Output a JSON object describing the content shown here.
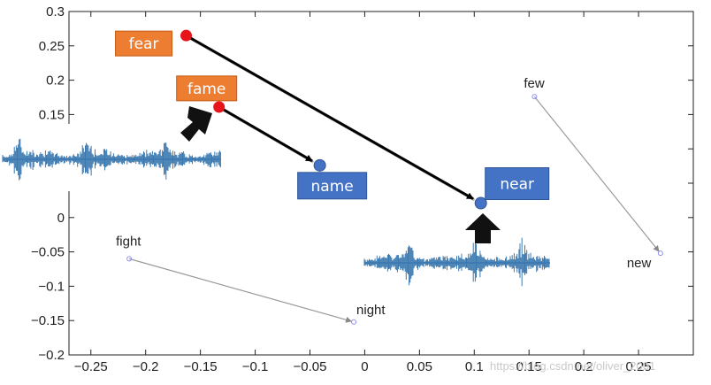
{
  "chart_data": {
    "type": "scatter",
    "title": "",
    "xlabel": "",
    "ylabel": "",
    "xlim": [
      -0.27,
      0.3
    ],
    "ylim": [
      -0.2,
      0.3
    ],
    "xticks": [
      -0.25,
      -0.2,
      -0.15,
      -0.1,
      -0.05,
      0,
      0.05,
      0.1,
      0.15,
      0.2,
      0.25
    ],
    "xtick_labels": [
      "−0.25",
      "−0.2",
      "−0.15",
      "−0.1",
      "−0.05",
      "0",
      "0.05",
      "0.1",
      "0.15",
      "0.2",
      "0.25"
    ],
    "yticks": [
      0.3,
      0.25,
      0.2,
      0.15,
      0.1,
      0.05,
      0,
      -0.05,
      -0.1,
      -0.15,
      -0.2
    ],
    "ytick_labels": [
      "0.3",
      "0.25",
      "0.2",
      "0.15",
      "0.1",
      "0.05",
      "0",
      "−0.05",
      "−0.1",
      "−0.15",
      "−0.2"
    ],
    "grid": false,
    "points": [
      {
        "label": "fear",
        "x": -0.163,
        "y": 0.265,
        "style": "highlight-source"
      },
      {
        "label": "fame",
        "x": -0.133,
        "y": 0.161,
        "style": "highlight-source"
      },
      {
        "label": "name",
        "x": -0.041,
        "y": 0.076,
        "style": "highlight-target"
      },
      {
        "label": "near",
        "x": 0.106,
        "y": 0.021,
        "style": "highlight-target"
      },
      {
        "label": "few",
        "x": 0.155,
        "y": 0.176,
        "style": "plain"
      },
      {
        "label": "new",
        "x": 0.27,
        "y": -0.052,
        "style": "plain"
      },
      {
        "label": "fight",
        "x": -0.215,
        "y": -0.06,
        "style": "plain"
      },
      {
        "label": "night",
        "x": -0.01,
        "y": -0.152,
        "style": "plain"
      }
    ],
    "pairs": [
      {
        "from": "fear",
        "to": "near",
        "style": "bold"
      },
      {
        "from": "fame",
        "to": "name",
        "style": "bold"
      },
      {
        "from": "few",
        "to": "new",
        "style": "thin"
      },
      {
        "from": "fight",
        "to": "night",
        "style": "thin"
      }
    ]
  },
  "colors": {
    "source_box": "#ED7D31",
    "target_box": "#4472C4",
    "source_point": "#E8141B",
    "target_point": "#4472C4",
    "waveform": "#3A78B0",
    "thin_arrow": "#9a9a9a",
    "bold_arrow": "#000000"
  },
  "icons": [
    "waveform-image",
    "waveform-image",
    "block-arrow-icon",
    "block-arrow-icon"
  ],
  "watermark": "https://blog.csdn.net/oliver_2001"
}
